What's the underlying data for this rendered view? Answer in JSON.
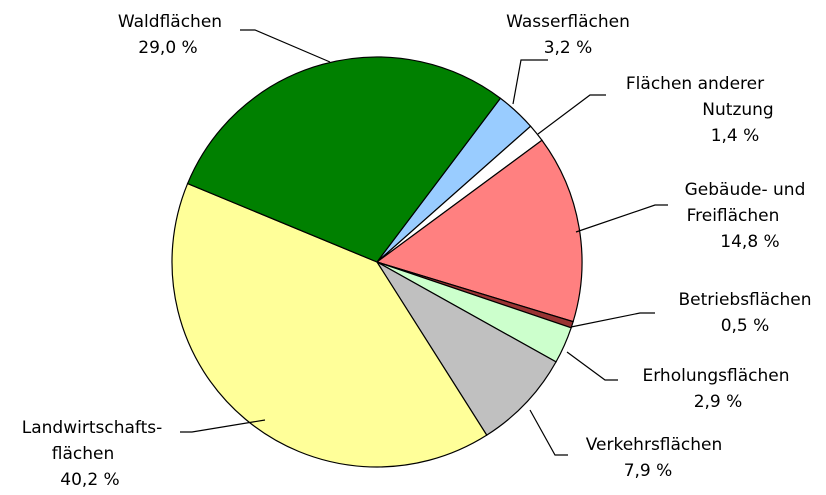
{
  "chart_data": {
    "type": "pie",
    "categories": [
      [
        "Wasserflächen"
      ],
      [
        "Flächen anderer",
        "Nutzung"
      ],
      [
        "Gebäude- und",
        "Freiflächen"
      ],
      [
        "Betriebsflächen"
      ],
      [
        "Erholungsflächen"
      ],
      [
        "Verkehrsflächen"
      ],
      [
        "Landwirtschafts-",
        "flächen"
      ],
      [
        "Waldflächen"
      ]
    ],
    "values": [
      3.2,
      1.4,
      14.8,
      0.5,
      2.9,
      7.9,
      40.2,
      29.0
    ],
    "value_labels": [
      "3,2 %",
      "1,4 %",
      "14,8 %",
      "0,5 %",
      "2,9 %",
      "7,9 %",
      "40,2 %",
      "29,0 %"
    ],
    "colors": [
      "#99ccff",
      "#ffffff",
      "#ff8080",
      "#993333",
      "#ccffcc",
      "#c0c0c0",
      "#ffff99",
      "#008000"
    ]
  }
}
